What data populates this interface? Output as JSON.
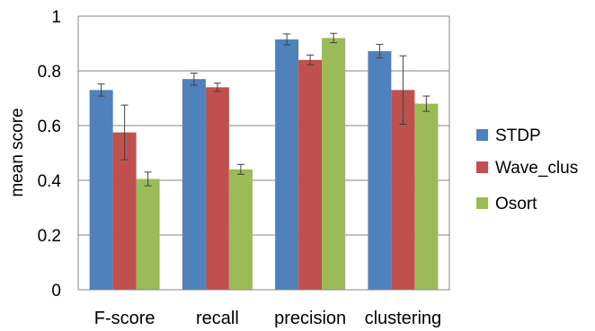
{
  "chart_data": {
    "type": "bar",
    "title": "",
    "xlabel": "",
    "ylabel": "mean score",
    "ylim": [
      0,
      1
    ],
    "yticks": [
      "0",
      "0.2",
      "0.4",
      "0.6",
      "0.8",
      "1"
    ],
    "grid": true,
    "legend_position": "right",
    "categories": [
      "F-score",
      "recall",
      "precision",
      "clustering"
    ],
    "series": [
      {
        "name": "STDP",
        "color": "#4f81bd",
        "values": [
          0.73,
          0.77,
          0.915,
          0.872
        ],
        "errors": [
          0.022,
          0.022,
          0.02,
          0.025
        ]
      },
      {
        "name": "Wave_clus",
        "color": "#c0504d",
        "values": [
          0.575,
          0.74,
          0.84,
          0.73
        ],
        "errors": [
          0.1,
          0.015,
          0.018,
          0.125
        ]
      },
      {
        "name": "Osort",
        "color": "#9bbb59",
        "values": [
          0.405,
          0.44,
          0.92,
          0.68
        ],
        "errors": [
          0.025,
          0.018,
          0.017,
          0.028
        ]
      }
    ]
  }
}
